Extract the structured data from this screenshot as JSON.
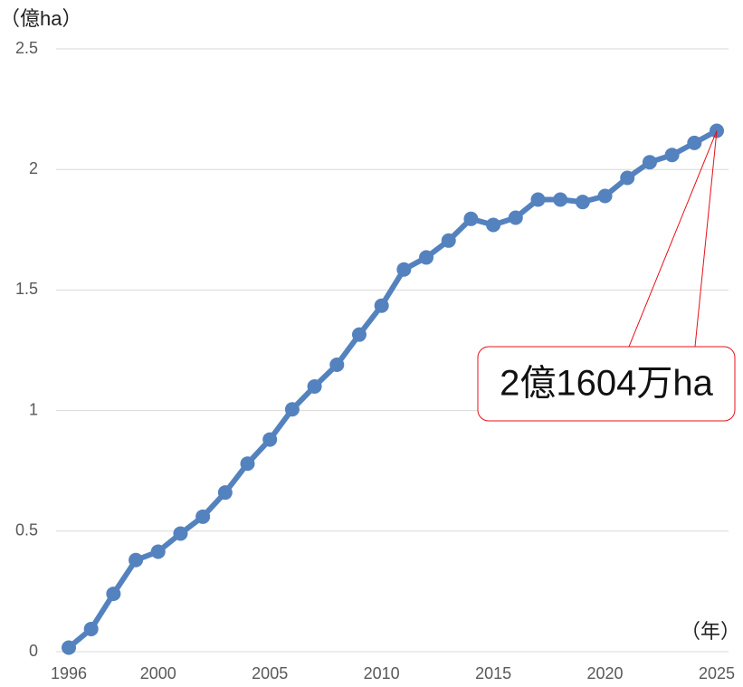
{
  "chart_data": {
    "type": "line",
    "y_axis_label": "（億ha）",
    "x_axis_label": "（年）",
    "annotation": "2億1604万ha",
    "x": [
      1996,
      1997,
      1998,
      1999,
      2000,
      2001,
      2002,
      2003,
      2004,
      2005,
      2006,
      2007,
      2008,
      2009,
      2010,
      2011,
      2012,
      2013,
      2014,
      2015,
      2016,
      2017,
      2018,
      2019,
      2020,
      2021,
      2022,
      2023,
      2024,
      2025
    ],
    "series": [
      {
        "name": null,
        "color": "#5482be",
        "values": [
          0.017,
          0.094,
          0.24,
          0.38,
          0.415,
          0.49,
          0.56,
          0.66,
          0.78,
          0.88,
          1.005,
          1.1,
          1.19,
          1.315,
          1.435,
          1.585,
          1.635,
          1.705,
          1.795,
          1.77,
          1.8,
          1.875,
          1.875,
          1.865,
          1.89,
          1.965,
          2.03,
          2.06,
          2.11,
          2.1604
        ]
      }
    ],
    "xlim": [
      1996,
      2025
    ],
    "xticks": [
      1996,
      2000,
      2005,
      2010,
      2015,
      2020,
      2025
    ],
    "ylim": [
      0,
      2.5
    ],
    "yticks": [
      0,
      0.5,
      1,
      1.5,
      2,
      2.5
    ],
    "grid": true,
    "annotation_color": "#e8101a"
  }
}
